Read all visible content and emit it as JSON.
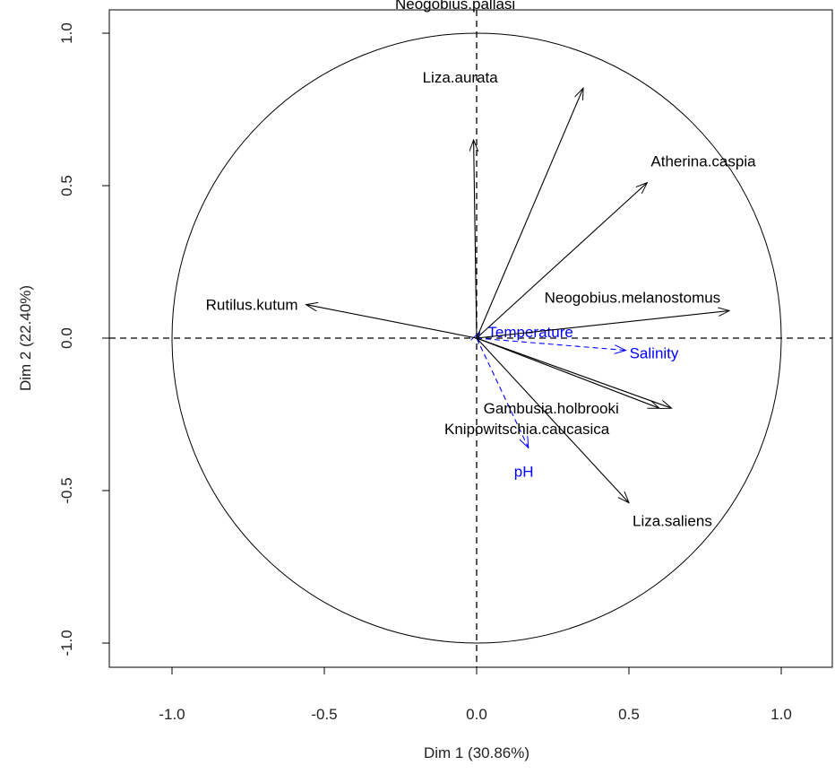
{
  "chart_data": {
    "type": "scatter",
    "subtype": "pca-correlation-circle",
    "xlabel": "Dim 1 (30.86%)",
    "ylabel": "Dim 2 (22.40%)",
    "xlim": [
      -1.2,
      1.2
    ],
    "ylim": [
      -1.08,
      1.08
    ],
    "x_ticks": [
      {
        "value": -1.0,
        "label": "-1.0"
      },
      {
        "value": -0.5,
        "label": "-0.5"
      },
      {
        "value": 0.0,
        "label": "0.0"
      },
      {
        "value": 0.5,
        "label": "0.5"
      },
      {
        "value": 1.0,
        "label": "1.0"
      }
    ],
    "y_ticks": [
      {
        "value": -1.0,
        "label": "-1.0"
      },
      {
        "value": -0.5,
        "label": "-0.5"
      },
      {
        "value": 0.0,
        "label": "0.0"
      },
      {
        "value": 0.5,
        "label": "0.5"
      },
      {
        "value": 1.0,
        "label": "1.0"
      }
    ],
    "unit_circle": true,
    "zero_lines": "dashed",
    "grid": false,
    "colors": {
      "species": "#000000",
      "supplementary": "#0000ff",
      "axes": "#000000"
    },
    "species_vectors": [
      {
        "name": "Neogobius.pallasi",
        "x": 0.35,
        "y": 0.82
      },
      {
        "name": "Liza.aurata",
        "x": -0.01,
        "y": 0.65
      },
      {
        "name": "Atherina.caspia",
        "x": 0.56,
        "y": 0.51
      },
      {
        "name": "Neogobius.melanostomus",
        "x": 0.83,
        "y": 0.09
      },
      {
        "name": "Rutilus.kutum",
        "x": -0.56,
        "y": 0.11
      },
      {
        "name": "Gambusia.holbrooki",
        "x": 0.64,
        "y": -0.23
      },
      {
        "name": "Knipowitschia.caucasica",
        "x": 0.6,
        "y": -0.23
      },
      {
        "name": "Liza.saliens",
        "x": 0.5,
        "y": -0.54
      }
    ],
    "supplementary_vectors": [
      {
        "name": "Temperature",
        "x": 0.01,
        "y": 0.02
      },
      {
        "name": "Salinity",
        "x": 0.49,
        "y": -0.04
      },
      {
        "name": "pH",
        "x": 0.17,
        "y": -0.36
      }
    ]
  }
}
